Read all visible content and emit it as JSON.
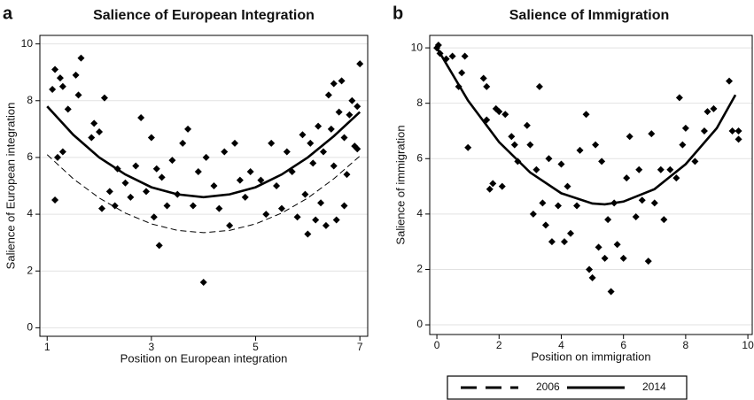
{
  "chart_data": [
    {
      "type": "scatter",
      "panel_label": "a",
      "title": "Salience of European Integration",
      "xlabel": "Position on European integration",
      "ylabel": "Salience of European integration",
      "xlim": [
        0.86,
        7.15
      ],
      "ylim": [
        -0.3,
        10.3
      ],
      "xticks": [
        1,
        3,
        5,
        7
      ],
      "yticks": [
        0,
        2,
        4,
        6,
        8,
        10
      ],
      "grid": true,
      "series": [
        {
          "style": "diamond",
          "color": "#000000",
          "x": [
            1.1,
            1.15,
            1.25,
            1.3,
            1.2,
            1.15,
            1.3,
            1.4,
            1.55,
            1.65,
            1.6,
            1.85,
            1.9,
            2.0,
            2.1,
            2.05,
            2.2,
            2.3,
            2.35,
            2.5,
            2.6,
            2.7,
            2.8,
            2.9,
            3.0,
            3.05,
            3.1,
            3.15,
            3.2,
            3.3,
            3.4,
            3.5,
            3.6,
            3.7,
            3.8,
            3.9,
            4.0,
            4.05,
            4.2,
            4.3,
            4.4,
            4.5,
            4.6,
            4.7,
            4.8,
            4.9,
            5.1,
            5.2,
            5.3,
            5.4,
            5.5,
            5.6,
            5.7,
            5.8,
            5.9,
            5.95,
            6.0,
            6.05,
            6.1,
            6.15,
            6.2,
            6.25,
            6.3,
            6.35,
            6.4,
            6.45,
            6.5,
            6.5,
            6.55,
            6.6,
            6.65,
            6.7,
            6.75,
            6.8,
            6.85,
            6.9,
            6.95,
            7.0,
            6.95,
            6.7
          ],
          "values": [
            8.4,
            9.1,
            8.8,
            8.5,
            6.0,
            4.5,
            6.2,
            7.7,
            8.9,
            9.5,
            8.2,
            6.7,
            7.2,
            6.9,
            8.1,
            4.2,
            4.8,
            4.3,
            5.6,
            5.1,
            4.6,
            5.7,
            7.4,
            4.8,
            6.7,
            3.9,
            5.6,
            2.9,
            5.3,
            4.3,
            5.9,
            4.7,
            6.5,
            7.0,
            4.3,
            5.5,
            1.6,
            6.0,
            5.0,
            4.2,
            6.2,
            3.6,
            6.5,
            5.2,
            4.6,
            5.5,
            5.2,
            4.0,
            6.5,
            5.0,
            4.2,
            6.2,
            5.5,
            3.9,
            6.8,
            4.7,
            3.3,
            6.5,
            5.8,
            3.8,
            7.1,
            4.4,
            6.2,
            3.6,
            8.2,
            7.0,
            8.6,
            5.7,
            3.8,
            7.6,
            8.7,
            6.7,
            5.4,
            7.5,
            8.0,
            6.4,
            7.8,
            9.3,
            6.3,
            4.3
          ]
        },
        {
          "name": "2006",
          "style": "dashed",
          "color": "#000000",
          "x": [
            1,
            1.5,
            2,
            2.5,
            3,
            3.5,
            4,
            4.5,
            5,
            5.5,
            6,
            6.5,
            7
          ],
          "values": [
            6.1,
            5.25,
            4.57,
            4.04,
            3.66,
            3.43,
            3.35,
            3.43,
            3.66,
            4.04,
            4.57,
            5.25,
            6.05
          ]
        },
        {
          "name": "2014",
          "style": "solid",
          "color": "#000000",
          "x": [
            1,
            1.5,
            2,
            2.5,
            3,
            3.5,
            4,
            4.5,
            5,
            5.5,
            6,
            6.5,
            7
          ],
          "values": [
            7.8,
            6.8,
            6.0,
            5.4,
            4.95,
            4.7,
            4.6,
            4.7,
            4.95,
            5.4,
            6.0,
            6.75,
            7.6
          ]
        }
      ]
    },
    {
      "type": "scatter",
      "panel_label": "b",
      "title": "Salience of Immigration",
      "xlabel": "Position on immigration",
      "ylabel": "Salience of immigration",
      "xlim": [
        -0.23,
        10.14
      ],
      "ylim": [
        -0.35,
        10.45
      ],
      "xticks": [
        0,
        2,
        4,
        6,
        8,
        10
      ],
      "yticks": [
        0,
        2,
        4,
        6,
        8,
        10
      ],
      "grid": true,
      "series": [
        {
          "style": "diamond",
          "color": "#000000",
          "x": [
            0,
            0.05,
            0.1,
            0.3,
            0.5,
            0.7,
            0.8,
            0.9,
            1.0,
            1.5,
            1.6,
            1.6,
            1.7,
            1.8,
            1.9,
            2.0,
            2.1,
            2.2,
            2.4,
            2.5,
            2.6,
            2.9,
            3.0,
            3.1,
            3.2,
            3.3,
            3.4,
            3.5,
            3.6,
            3.7,
            3.9,
            4.0,
            4.1,
            4.2,
            4.3,
            4.5,
            4.6,
            4.8,
            4.9,
            5.0,
            5.1,
            5.2,
            5.3,
            5.4,
            5.5,
            5.6,
            5.7,
            5.8,
            6.0,
            6.1,
            6.2,
            6.4,
            6.5,
            6.6,
            6.8,
            6.9,
            7.0,
            7.2,
            7.3,
            7.5,
            7.7,
            7.8,
            7.9,
            8.0,
            8.3,
            8.6,
            8.7,
            8.9,
            9.4,
            9.5,
            9.7,
            9.7
          ],
          "values": [
            10.0,
            10.1,
            9.8,
            9.6,
            9.7,
            8.6,
            9.1,
            9.7,
            6.4,
            8.9,
            8.6,
            7.4,
            4.9,
            5.1,
            7.8,
            7.7,
            5.0,
            7.6,
            6.8,
            6.5,
            5.9,
            7.2,
            6.5,
            4.0,
            5.6,
            8.6,
            4.4,
            3.6,
            6.0,
            3.0,
            4.3,
            5.8,
            3.0,
            5.0,
            3.3,
            4.3,
            6.3,
            7.6,
            2.0,
            1.7,
            6.5,
            2.8,
            5.9,
            2.4,
            3.8,
            1.2,
            4.4,
            2.9,
            2.4,
            5.3,
            6.8,
            3.9,
            5.6,
            4.5,
            2.3,
            6.9,
            4.4,
            5.6,
            3.8,
            5.6,
            5.3,
            8.2,
            6.5,
            7.1,
            5.9,
            7.0,
            7.7,
            7.8,
            8.8,
            7.0,
            6.7,
            7.0
          ]
        },
        {
          "style": "solid",
          "color": "#000000",
          "x": [
            0,
            1,
            2,
            3,
            4,
            5,
            5.4,
            6,
            7,
            8,
            9,
            9.6
          ],
          "values": [
            10.0,
            8.1,
            6.6,
            5.5,
            4.75,
            4.38,
            4.35,
            4.45,
            4.9,
            5.8,
            7.1,
            8.3
          ]
        }
      ]
    }
  ]
}
